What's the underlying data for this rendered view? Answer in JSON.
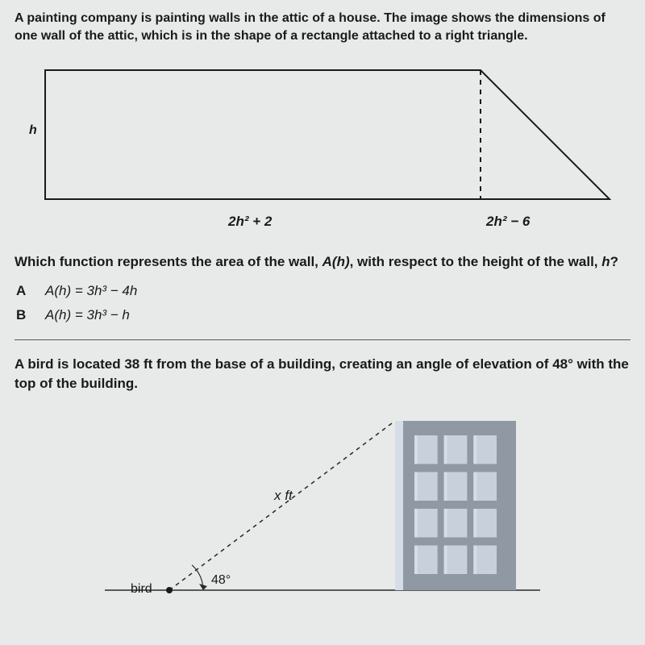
{
  "q1": {
    "intro": "A painting company is painting walls in the attic of a house. The image shows the dimensions of one wall of the attic, which is in the shape of a rectangle attached to a right triangle.",
    "height_label": "h",
    "base_label": "2h² + 2",
    "tri_base_label": "2h² − 6",
    "question_pre": "Which function represents the area of the wall, ",
    "question_fn": "A(h)",
    "question_mid": ", with respect to the height of the wall, ",
    "question_var": "h",
    "question_post": "?",
    "options": {
      "A": {
        "letter": "A",
        "formula": "A(h) = 3h³ − 4h"
      },
      "B": {
        "letter": "B",
        "formula": "A(h) = 3h³ − h"
      }
    },
    "shape": {
      "stroke": "#1a1a1a",
      "stroke_width": 2,
      "dash_pattern": "6,6",
      "rect_w": 540,
      "rect_h": 160,
      "tri_w": 160
    }
  },
  "q2": {
    "text": "A bird is located 38 ft from the base of a building, creating an angle of elevation of 48° with the top of the building.",
    "hyp_label": "x ft",
    "angle_label": "48°",
    "bird_label": "bird",
    "building": {
      "fill": "#9099a3",
      "hilite": "#d5dde6",
      "window_fill": "#c7d0db",
      "cols": 3,
      "rows": 4
    },
    "line": {
      "stroke": "#2a2a2a",
      "dash_pattern": "5,5",
      "stroke_width": 1.5
    },
    "ground_stroke": "#2a2a2a"
  }
}
